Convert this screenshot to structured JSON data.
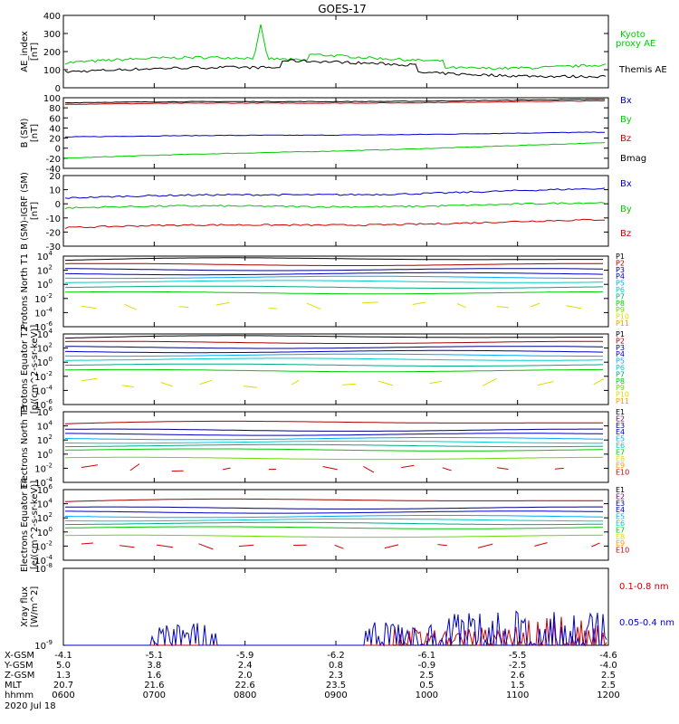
{
  "title": "GOES-17",
  "colors": {
    "black": "#000000",
    "red": "#cc0000",
    "green": "#00cc00",
    "blue": "#0000cc",
    "cyan": "#00cccc",
    "lightblue": "#00aaff",
    "teal": "#00aa88",
    "lime": "#66dd00",
    "yellow": "#dddd00",
    "orange": "#ff9900",
    "darkred": "#aa0000",
    "purple": "#660066",
    "navy": "#000088"
  },
  "x_ticks": [
    "0600",
    "0700",
    "0800",
    "0900",
    "1000",
    "1100",
    "1200"
  ],
  "footer": {
    "labels": [
      "X-GSM",
      "Y-GSM",
      "Z-GSM",
      "MLT",
      "hhmm",
      "2020 Jul 18"
    ],
    "rows": [
      [
        "-4.1",
        "-5.1",
        "-5.9",
        "-6.2",
        "-6.1",
        "-5.5",
        "-4.6"
      ],
      [
        "5.0",
        "3.8",
        "2.4",
        "0.8",
        "-0.9",
        "-2.5",
        "-4.0"
      ],
      [
        "1.3",
        "1.6",
        "2.0",
        "2.3",
        "2.5",
        "2.6",
        "2.5"
      ],
      [
        "20.7",
        "21.6",
        "22.6",
        "23.5",
        "0.5",
        "1.5",
        "2.5"
      ],
      [
        "0600",
        "0700",
        "0800",
        "0900",
        "1000",
        "1100",
        "1200"
      ]
    ]
  },
  "chart_data": [
    {
      "type": "line",
      "ylabel": "AE_index [nT]",
      "ylim": [
        0,
        400
      ],
      "yticks": [
        "400",
        "300",
        "200",
        "100",
        "0"
      ],
      "legend": [
        "Kyoto proxy AE",
        "Themis AE"
      ],
      "series": [
        {
          "name": "Kyoto proxy AE",
          "color": "#00cc00",
          "mean": 140
        },
        {
          "name": "Themis AE",
          "color": "#000000",
          "mean": 85
        }
      ]
    },
    {
      "type": "line",
      "ylabel": "B (SM) [nT]",
      "ylim": [
        -40,
        100
      ],
      "yticks": [
        "100",
        "80",
        "60",
        "40",
        "20",
        "0",
        "-20",
        "-40"
      ],
      "legend": [
        "Bx",
        "By",
        "Bz",
        "Bmag"
      ],
      "series": [
        {
          "name": "Bx",
          "color": "#0000cc",
          "start": 22,
          "end": 31
        },
        {
          "name": "By",
          "color": "#00cc00",
          "start": -20,
          "end": 10
        },
        {
          "name": "Bz",
          "color": "#cc0000",
          "start": 87,
          "end": 93
        },
        {
          "name": "Bmag",
          "color": "#000000",
          "start": 90,
          "end": 96
        }
      ]
    },
    {
      "type": "line",
      "ylabel": "B (SM)-IGRF (SM) [nT]",
      "ylim": [
        -30,
        20
      ],
      "yticks": [
        "20",
        "10",
        "0",
        "-10",
        "-20",
        "-30"
      ],
      "legend": [
        "Bx",
        "By",
        "Bz"
      ],
      "series": [
        {
          "name": "Bx",
          "color": "#0000cc",
          "start": 4,
          "end": 10
        },
        {
          "name": "By",
          "color": "#00cc00",
          "start": -3,
          "end": 0
        },
        {
          "name": "Bz",
          "color": "#cc0000",
          "start": -17,
          "end": -12
        }
      ]
    },
    {
      "type": "line",
      "ylabel": "Protons North T1",
      "log": true,
      "ylim": [
        -6,
        4
      ],
      "yticks": [
        "10^4",
        "10^2",
        "10^0",
        "10^-2",
        "10^-4",
        "10^-6"
      ],
      "legend": [
        "P1",
        "P2",
        "P3",
        "P4",
        "P5",
        "P6",
        "P7",
        "P8",
        "P9",
        "P10",
        "P11"
      ]
    },
    {
      "type": "line",
      "ylabel": "Protons Equator T2 [p/(cm^2-s-sr-keV)]",
      "log": true,
      "ylim": [
        -6,
        4
      ],
      "yticks": [
        "10^4",
        "10^2",
        "10^0",
        "10^-2",
        "10^-4",
        "10^-6"
      ],
      "legend": [
        "P1",
        "P2",
        "P3",
        "P4",
        "P5",
        "P6",
        "P7",
        "P8",
        "P9",
        "P10",
        "P11"
      ]
    },
    {
      "type": "line",
      "ylabel": "Electrons North T3",
      "log": true,
      "ylim": [
        -4,
        6
      ],
      "yticks": [
        "10^6",
        "10^4",
        "10^2",
        "10^0",
        "10^-2",
        "10^-4"
      ],
      "legend": [
        "E1",
        "E2",
        "E3",
        "E4",
        "E5",
        "E6",
        "E7",
        "E8",
        "E9",
        "E10"
      ]
    },
    {
      "type": "line",
      "ylabel": "Electrons Equator T4 [e/(cm^2-s-sr-keV)]",
      "log": true,
      "ylim": [
        -4,
        6
      ],
      "yticks": [
        "10^6",
        "10^4",
        "10^2",
        "10^0",
        "10^-2",
        "10^-4"
      ],
      "legend": [
        "E1",
        "E2",
        "E3",
        "E4",
        "E5",
        "E6",
        "E7",
        "E8",
        "E9",
        "E10"
      ]
    },
    {
      "type": "line",
      "ylabel": "Xray flux [W/m^2]",
      "log": true,
      "ylim": [
        -9,
        -8
      ],
      "yticks": [
        "10^-8",
        "10^-9"
      ],
      "legend": [
        "0.1-0.8 nm",
        "0.05-0.4 nm"
      ]
    }
  ]
}
